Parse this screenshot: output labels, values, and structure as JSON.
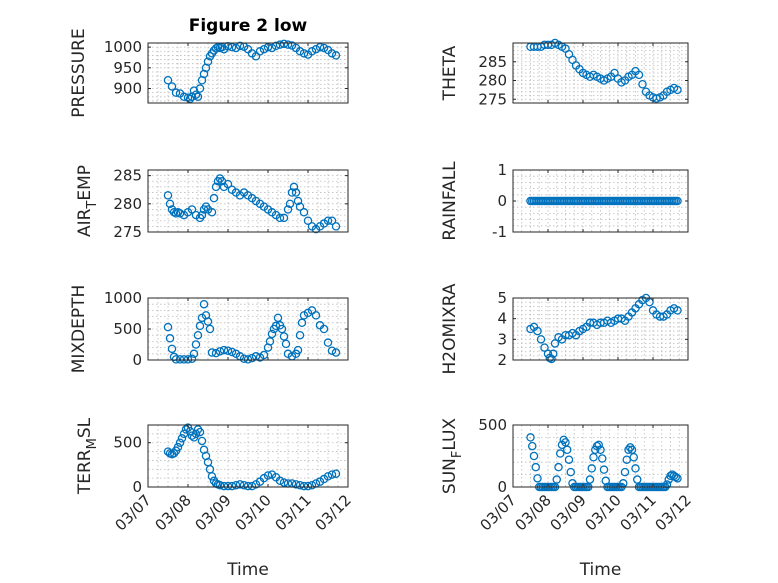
{
  "figure_title": "Figure 2 low",
  "colors": {
    "marker": "#0072BD",
    "axis": "#262626",
    "grid": "#bdbdbd"
  },
  "chart_data": [
    {
      "type": "scatter",
      "id": "pressure",
      "title": "Figure 2 low",
      "ylabel_main": "PRESSURE",
      "ylabel_sub": "",
      "ylabel_tail": "",
      "ylim": [
        865,
        1010
      ],
      "yticks": [
        900,
        950,
        1000
      ],
      "ytick_labels": [
        "900",
        "950",
        "1000"
      ],
      "xlim": [
        0,
        5
      ],
      "show_xticklabels": false,
      "xlabel": "",
      "grid": true,
      "minor_grid": true,
      "x": [
        0.5,
        0.6,
        0.7,
        0.8,
        0.9,
        1.0,
        1.05,
        1.1,
        1.15,
        1.2,
        1.25,
        1.3,
        1.35,
        1.4,
        1.45,
        1.5,
        1.55,
        1.6,
        1.65,
        1.7,
        1.75,
        1.8,
        1.85,
        1.9,
        2.0,
        2.1,
        2.2,
        2.3,
        2.4,
        2.5,
        2.6,
        2.7,
        2.8,
        2.9,
        3.0,
        3.1,
        3.2,
        3.3,
        3.4,
        3.5,
        3.6,
        3.7,
        3.8,
        3.9,
        4.0,
        4.1,
        4.2,
        4.3,
        4.4,
        4.5,
        4.6,
        4.7
      ],
      "y": [
        920,
        905,
        890,
        888,
        880,
        878,
        875,
        880,
        895,
        885,
        880,
        900,
        920,
        935,
        950,
        965,
        978,
        985,
        992,
        997,
        1000,
        998,
        1000,
        995,
        1002,
        1000,
        998,
        1003,
        1001,
        995,
        985,
        978,
        990,
        995,
        1000,
        998,
        1003,
        1006,
        1008,
        1006,
        1004,
        998,
        990,
        985,
        982,
        990,
        995,
        1000,
        998,
        993,
        985,
        980
      ]
    },
    {
      "type": "scatter",
      "id": "theta",
      "ylabel_main": "THETA",
      "ylabel_sub": "",
      "ylabel_tail": "",
      "ylim": [
        274,
        290
      ],
      "yticks": [
        275,
        280,
        285
      ],
      "ytick_labels": [
        "275",
        "280",
        "285"
      ],
      "xlim": [
        0,
        5
      ],
      "show_xticklabels": false,
      "xlabel": "",
      "grid": true,
      "minor_grid": true,
      "x": [
        0.5,
        0.6,
        0.7,
        0.8,
        0.9,
        1.0,
        1.1,
        1.2,
        1.3,
        1.4,
        1.5,
        1.6,
        1.7,
        1.8,
        1.9,
        2.0,
        2.1,
        2.2,
        2.3,
        2.4,
        2.5,
        2.6,
        2.7,
        2.8,
        2.9,
        3.0,
        3.1,
        3.2,
        3.3,
        3.4,
        3.5,
        3.6,
        3.7,
        3.8,
        3.9,
        4.0,
        4.1,
        4.2,
        4.3,
        4.4,
        4.5,
        4.6,
        4.7
      ],
      "y": [
        289,
        289,
        289,
        289,
        289.5,
        289.5,
        289.5,
        290,
        289.5,
        289,
        288.5,
        287,
        285.5,
        284,
        283,
        282,
        281.5,
        281,
        281.5,
        281,
        280.5,
        280,
        280.5,
        281,
        282,
        280.5,
        279.5,
        280,
        281,
        281.5,
        282.5,
        281.5,
        279,
        277,
        276,
        275.5,
        275.2,
        275.5,
        276,
        277,
        277.5,
        278,
        277.5
      ]
    },
    {
      "type": "scatter",
      "id": "air_temp",
      "ylabel_main": "AIR",
      "ylabel_sub": "T",
      "ylabel_tail": "EMP",
      "ylim": [
        275,
        286
      ],
      "yticks": [
        275,
        280,
        285
      ],
      "ytick_labels": [
        "275",
        "280",
        "285"
      ],
      "xlim": [
        0,
        5
      ],
      "show_xticklabels": false,
      "xlabel": "",
      "grid": true,
      "minor_grid": true,
      "x": [
        0.5,
        0.55,
        0.6,
        0.65,
        0.7,
        0.75,
        0.8,
        0.9,
        1.0,
        1.1,
        1.2,
        1.3,
        1.35,
        1.4,
        1.45,
        1.5,
        1.6,
        1.65,
        1.7,
        1.75,
        1.8,
        1.85,
        1.9,
        2.0,
        2.1,
        2.2,
        2.3,
        2.4,
        2.5,
        2.6,
        2.7,
        2.8,
        2.9,
        3.0,
        3.1,
        3.2,
        3.3,
        3.4,
        3.5,
        3.55,
        3.6,
        3.65,
        3.7,
        3.75,
        3.8,
        3.9,
        4.0,
        4.1,
        4.2,
        4.3,
        4.4,
        4.5,
        4.6,
        4.7
      ],
      "y": [
        281.5,
        280,
        279,
        278.5,
        278.3,
        278.5,
        278.3,
        278,
        278.5,
        279,
        278,
        277.5,
        278,
        279,
        279.5,
        279,
        278.5,
        281,
        283,
        284,
        284.5,
        284,
        283,
        283.5,
        282.5,
        282,
        281.5,
        282,
        281.5,
        281,
        280.5,
        280,
        279.5,
        279,
        278.5,
        278,
        277.5,
        277.5,
        279,
        280,
        282,
        283,
        282,
        280.5,
        279.5,
        278.5,
        277,
        276,
        275.5,
        276,
        276.5,
        277,
        277,
        276
      ]
    },
    {
      "type": "scatter",
      "id": "rainfall",
      "ylabel_main": "RAINFALL",
      "ylabel_sub": "",
      "ylabel_tail": "",
      "ylim": [
        -1,
        1
      ],
      "yticks": [
        -1,
        0,
        1
      ],
      "ytick_labels": [
        "-1",
        "0",
        "1"
      ],
      "xlim": [
        0,
        5
      ],
      "show_xticklabels": false,
      "xlabel": "",
      "grid": true,
      "minor_grid": true,
      "x": [
        0.5,
        0.55,
        0.6,
        0.65,
        0.7,
        0.75,
        0.8,
        0.85,
        0.9,
        0.95,
        1.0,
        1.05,
        1.1,
        1.15,
        1.2,
        1.25,
        1.3,
        1.35,
        1.4,
        1.45,
        1.5,
        1.55,
        1.6,
        1.65,
        1.7,
        1.75,
        1.8,
        1.85,
        1.9,
        1.95,
        2.0,
        2.05,
        2.1,
        2.15,
        2.2,
        2.25,
        2.3,
        2.35,
        2.4,
        2.45,
        2.5,
        2.55,
        2.6,
        2.65,
        2.7,
        2.75,
        2.8,
        2.85,
        2.9,
        2.95,
        3.0,
        3.05,
        3.1,
        3.15,
        3.2,
        3.25,
        3.3,
        3.35,
        3.4,
        3.45,
        3.5,
        3.55,
        3.6,
        3.65,
        3.7,
        3.75,
        3.8,
        3.85,
        3.9,
        3.95,
        4.0,
        4.05,
        4.1,
        4.15,
        4.2,
        4.25,
        4.3,
        4.35,
        4.4,
        4.45,
        4.5,
        4.55,
        4.6,
        4.65,
        4.7
      ],
      "y": [
        0,
        0,
        0,
        0,
        0,
        0,
        0,
        0,
        0,
        0,
        0,
        0,
        0,
        0,
        0,
        0,
        0,
        0,
        0,
        0,
        0,
        0,
        0,
        0,
        0,
        0,
        0,
        0,
        0,
        0,
        0,
        0,
        0,
        0,
        0,
        0,
        0,
        0,
        0,
        0,
        0,
        0,
        0,
        0,
        0,
        0,
        0,
        0,
        0,
        0,
        0,
        0,
        0,
        0,
        0,
        0,
        0,
        0,
        0,
        0,
        0,
        0,
        0,
        0,
        0,
        0,
        0,
        0,
        0,
        0,
        0,
        0,
        0,
        0,
        0,
        0,
        0,
        0,
        0,
        0,
        0,
        0,
        0,
        0,
        0
      ]
    },
    {
      "type": "scatter",
      "id": "mixdepth",
      "ylabel_main": "MIXDEPTH",
      "ylabel_sub": "",
      "ylabel_tail": "",
      "ylim": [
        0,
        1000
      ],
      "yticks": [
        0,
        500,
        1000
      ],
      "ytick_labels": [
        "0",
        "500",
        "1000"
      ],
      "xlim": [
        0,
        5
      ],
      "show_xticklabels": false,
      "xlabel": "",
      "grid": true,
      "minor_grid": true,
      "x": [
        0.5,
        0.55,
        0.6,
        0.65,
        0.7,
        0.8,
        0.9,
        1.0,
        1.1,
        1.15,
        1.2,
        1.25,
        1.3,
        1.35,
        1.4,
        1.45,
        1.5,
        1.55,
        1.6,
        1.7,
        1.8,
        1.9,
        2.0,
        2.1,
        2.2,
        2.3,
        2.4,
        2.5,
        2.6,
        2.7,
        2.8,
        2.9,
        3.0,
        3.05,
        3.1,
        3.15,
        3.2,
        3.25,
        3.3,
        3.35,
        3.4,
        3.45,
        3.5,
        3.6,
        3.7,
        3.75,
        3.8,
        3.85,
        3.9,
        4.0,
        4.1,
        4.2,
        4.3,
        4.4,
        4.5,
        4.6,
        4.7
      ],
      "y": [
        530,
        350,
        180,
        50,
        10,
        10,
        10,
        10,
        20,
        100,
        250,
        400,
        550,
        680,
        900,
        720,
        620,
        500,
        120,
        110,
        140,
        160,
        150,
        130,
        100,
        60,
        20,
        10,
        30,
        60,
        40,
        80,
        200,
        300,
        420,
        500,
        550,
        680,
        560,
        500,
        380,
        260,
        100,
        60,
        100,
        160,
        400,
        600,
        720,
        760,
        800,
        720,
        560,
        500,
        280,
        150,
        120
      ]
    },
    {
      "type": "scatter",
      "id": "h2omixra",
      "ylabel_main": "H2OMIXRA",
      "ylabel_sub": "",
      "ylabel_tail": "",
      "ylim": [
        2,
        5
      ],
      "yticks": [
        2,
        3,
        4,
        5
      ],
      "ytick_labels": [
        "2",
        "3",
        "4",
        "5"
      ],
      "xlim": [
        0,
        5
      ],
      "show_xticklabels": false,
      "xlabel": "",
      "grid": true,
      "minor_grid": true,
      "x": [
        0.5,
        0.6,
        0.7,
        0.8,
        0.9,
        1.0,
        1.05,
        1.1,
        1.15,
        1.2,
        1.3,
        1.4,
        1.5,
        1.6,
        1.7,
        1.8,
        1.9,
        2.0,
        2.1,
        2.2,
        2.3,
        2.4,
        2.5,
        2.6,
        2.7,
        2.8,
        2.9,
        3.0,
        3.1,
        3.2,
        3.3,
        3.4,
        3.5,
        3.6,
        3.7,
        3.8,
        3.9,
        4.0,
        4.1,
        4.2,
        4.3,
        4.4,
        4.5,
        4.6,
        4.7
      ],
      "y": [
        3.5,
        3.6,
        3.4,
        3.0,
        2.6,
        2.3,
        2.1,
        2.05,
        2.3,
        2.8,
        3.1,
        3.0,
        3.2,
        3.2,
        3.3,
        3.2,
        3.4,
        3.5,
        3.6,
        3.8,
        3.8,
        3.7,
        3.8,
        3.8,
        3.9,
        3.8,
        3.9,
        4.0,
        4.0,
        3.9,
        4.1,
        4.3,
        4.5,
        4.7,
        4.9,
        5.0,
        4.8,
        4.4,
        4.2,
        4.1,
        4.1,
        4.2,
        4.4,
        4.5,
        4.4
      ]
    },
    {
      "type": "scatter",
      "id": "terr_msl",
      "ylabel_main": "TERR",
      "ylabel_sub": "M",
      "ylabel_tail": "SL",
      "ylim": [
        0,
        700
      ],
      "yticks": [
        0,
        500
      ],
      "ytick_labels": [
        "0",
        "500"
      ],
      "xlim": [
        0,
        5
      ],
      "show_xticklabels": true,
      "xticks": [
        0,
        1,
        2,
        3,
        4,
        5
      ],
      "xtick_labels": [
        "03/07",
        "03/08",
        "03/09",
        "03/10",
        "03/11",
        "03/12"
      ],
      "xlabel": "Time",
      "grid": true,
      "minor_grid": true,
      "x": [
        0.5,
        0.55,
        0.6,
        0.65,
        0.7,
        0.75,
        0.8,
        0.85,
        0.9,
        0.95,
        1.0,
        1.05,
        1.1,
        1.15,
        1.2,
        1.25,
        1.3,
        1.35,
        1.4,
        1.45,
        1.5,
        1.55,
        1.6,
        1.65,
        1.7,
        1.75,
        1.8,
        1.9,
        2.0,
        2.1,
        2.2,
        2.3,
        2.4,
        2.5,
        2.6,
        2.7,
        2.8,
        2.9,
        3.0,
        3.1,
        3.2,
        3.3,
        3.4,
        3.5,
        3.6,
        3.7,
        3.8,
        3.9,
        4.0,
        4.1,
        4.2,
        4.3,
        4.4,
        4.5,
        4.6,
        4.7
      ],
      "y": [
        400,
        380,
        370,
        380,
        410,
        450,
        500,
        550,
        600,
        650,
        670,
        630,
        580,
        560,
        600,
        650,
        620,
        520,
        420,
        350,
        280,
        200,
        120,
        70,
        40,
        30,
        20,
        10,
        10,
        10,
        20,
        30,
        20,
        10,
        10,
        30,
        60,
        100,
        130,
        140,
        110,
        70,
        50,
        40,
        40,
        30,
        20,
        10,
        10,
        20,
        40,
        60,
        90,
        120,
        140,
        150
      ]
    },
    {
      "type": "scatter",
      "id": "sun_flux",
      "ylabel_main": "SUN",
      "ylabel_sub": "F",
      "ylabel_tail": "LUX",
      "ylim": [
        0,
        500
      ],
      "yticks": [
        0,
        500
      ],
      "ytick_labels": [
        "0",
        "500"
      ],
      "xlim": [
        0,
        5
      ],
      "show_xticklabels": true,
      "xticks": [
        0,
        1,
        2,
        3,
        4,
        5
      ],
      "xtick_labels": [
        "03/07",
        "03/08",
        "03/09",
        "03/10",
        "03/11",
        "03/12"
      ],
      "xlabel": "Time",
      "grid": true,
      "minor_grid": true,
      "x": [
        0.5,
        0.55,
        0.6,
        0.65,
        0.7,
        0.75,
        0.8,
        0.85,
        0.9,
        0.95,
        1.0,
        1.05,
        1.1,
        1.15,
        1.2,
        1.25,
        1.3,
        1.35,
        1.4,
        1.45,
        1.5,
        1.55,
        1.6,
        1.65,
        1.7,
        1.75,
        1.8,
        1.85,
        1.9,
        1.95,
        2.0,
        2.05,
        2.1,
        2.15,
        2.2,
        2.25,
        2.3,
        2.35,
        2.4,
        2.45,
        2.5,
        2.55,
        2.6,
        2.65,
        2.7,
        2.75,
        2.8,
        2.85,
        2.9,
        2.95,
        3.0,
        3.05,
        3.1,
        3.15,
        3.2,
        3.25,
        3.3,
        3.35,
        3.4,
        3.45,
        3.5,
        3.55,
        3.6,
        3.65,
        3.7,
        3.75,
        3.8,
        3.85,
        3.9,
        3.95,
        4.0,
        4.05,
        4.1,
        4.15,
        4.2,
        4.25,
        4.3,
        4.35,
        4.4,
        4.45,
        4.5,
        4.55,
        4.6,
        4.65,
        4.7
      ],
      "y": [
        400,
        330,
        250,
        160,
        70,
        0,
        0,
        0,
        0,
        0,
        0,
        0,
        0,
        0,
        0,
        60,
        160,
        270,
        340,
        380,
        360,
        300,
        220,
        120,
        30,
        0,
        0,
        0,
        0,
        0,
        0,
        0,
        0,
        0,
        60,
        150,
        240,
        300,
        330,
        340,
        300,
        230,
        140,
        50,
        0,
        0,
        0,
        0,
        0,
        0,
        0,
        0,
        0,
        30,
        120,
        220,
        300,
        320,
        300,
        240,
        150,
        60,
        0,
        0,
        0,
        0,
        0,
        0,
        0,
        0,
        0,
        0,
        0,
        0,
        0,
        0,
        0,
        0,
        20,
        60,
        90,
        100,
        90,
        80,
        70
      ]
    }
  ]
}
